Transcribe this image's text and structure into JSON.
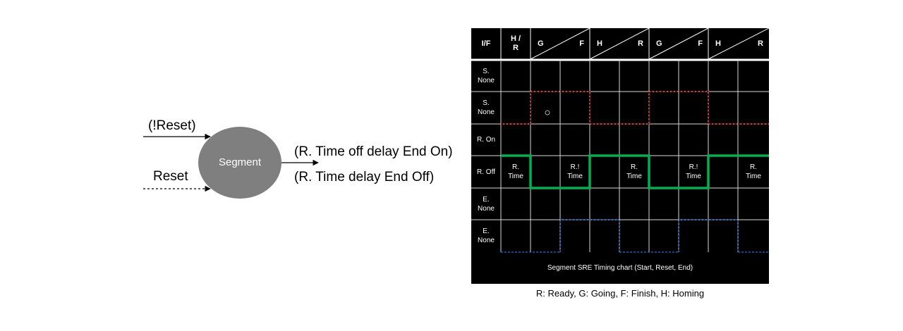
{
  "state_diagram": {
    "state": "Segment",
    "input_top": "(!Reset)",
    "input_bottom": "Reset",
    "output_top": "(R. Time off delay End On)",
    "output_bottom": "(R. Time delay End Off)"
  },
  "timing_chart": {
    "headers": {
      "if": "I/F",
      "hr": "H /\nR",
      "groups": [
        {
          "left": "G",
          "right": "F"
        },
        {
          "left": "H",
          "right": "R"
        },
        {
          "left": "G",
          "right": "F"
        },
        {
          "left": "H",
          "right": "R"
        }
      ]
    },
    "rows": [
      "S.\nNone",
      "S.\nNone",
      "R. On",
      "R. Off",
      "E.\nNone",
      "E.\nNone"
    ],
    "r_off_labels": [
      {
        "col": 1,
        "text": "R.\nTime"
      },
      {
        "col": 3,
        "text": "R.!\nTime"
      },
      {
        "col": 5,
        "text": "R.\nTime"
      },
      {
        "col": 7,
        "text": "R.!\nTime"
      },
      {
        "col": 9,
        "text": "R.\nTime"
      }
    ],
    "signal_colors": {
      "s_none": "#c00000",
      "r_off": "#00b050",
      "e_none": "#1f6fcf",
      "grid": "#d9d9d9"
    },
    "caption": "Segment SRE Timing chart (Start, Reset, End)"
  },
  "legend": "R: Ready, G: Going, F: Finish, H: Homing"
}
